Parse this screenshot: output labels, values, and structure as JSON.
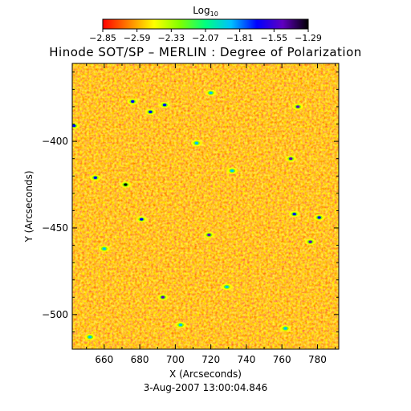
{
  "chart_data": {
    "type": "heatmap",
    "title": "Hinode SOT/SP – MERLIN : Degree of Polarization",
    "colorbar": {
      "label_main": "Log",
      "label_sub": "10",
      "tick_labels": [
        "−2.85",
        "−2.59",
        "−2.33",
        "−2.07",
        "−1.81",
        "−1.55",
        "−1.29"
      ],
      "range": [
        -2.85,
        -1.29
      ],
      "colormap": [
        "#ff0000",
        "#ff8000",
        "#ffff00",
        "#80ff00",
        "#00ff80",
        "#00c0ff",
        "#0000ff",
        "#6000c0",
        "#000000"
      ]
    },
    "xlabel": "X (Arcseconds)",
    "ylabel": "Y (Arcseconds)",
    "xlim": [
      642,
      792
    ],
    "ylim": [
      -520,
      -355
    ],
    "x_ticks": [
      {
        "value": 660,
        "label": "660"
      },
      {
        "value": 680,
        "label": "680"
      },
      {
        "value": 700,
        "label": "700"
      },
      {
        "value": 720,
        "label": "720"
      },
      {
        "value": 740,
        "label": "740"
      },
      {
        "value": 760,
        "label": "760"
      },
      {
        "value": 780,
        "label": "780"
      }
    ],
    "y_ticks": [
      {
        "value": -400,
        "label": "−400"
      },
      {
        "value": -450,
        "label": "−450"
      },
      {
        "value": -500,
        "label": "−500"
      }
    ],
    "background_level": -2.7,
    "features": [
      {
        "x": 676,
        "y": -377,
        "value": -1.75
      },
      {
        "x": 686,
        "y": -383,
        "value": -1.6
      },
      {
        "x": 694,
        "y": -379,
        "value": -1.7
      },
      {
        "x": 720,
        "y": -372,
        "value": -1.8
      },
      {
        "x": 769,
        "y": -380,
        "value": -1.45
      },
      {
        "x": 643,
        "y": -391,
        "value": -1.6
      },
      {
        "x": 712,
        "y": -401,
        "value": -1.9
      },
      {
        "x": 765,
        "y": -410,
        "value": -1.55
      },
      {
        "x": 655,
        "y": -421,
        "value": -1.7
      },
      {
        "x": 672,
        "y": -425,
        "value": -1.35
      },
      {
        "x": 732,
        "y": -417,
        "value": -1.9
      },
      {
        "x": 781,
        "y": -444,
        "value": -1.65
      },
      {
        "x": 681,
        "y": -445,
        "value": -1.6
      },
      {
        "x": 719,
        "y": -454,
        "value": -1.4
      },
      {
        "x": 767,
        "y": -442,
        "value": -1.7
      },
      {
        "x": 776,
        "y": -458,
        "value": -1.4
      },
      {
        "x": 660,
        "y": -462,
        "value": -1.85
      },
      {
        "x": 693,
        "y": -490,
        "value": -1.45
      },
      {
        "x": 729,
        "y": -484,
        "value": -1.9
      },
      {
        "x": 703,
        "y": -506,
        "value": -1.85
      },
      {
        "x": 762,
        "y": -508,
        "value": -1.9
      },
      {
        "x": 652,
        "y": -513,
        "value": -1.9
      }
    ]
  },
  "footer": {
    "timestamp": "3-Aug-2007 13:00:04.846"
  }
}
